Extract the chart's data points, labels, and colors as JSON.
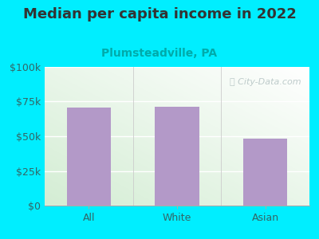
{
  "title": "Median per capita income in 2022",
  "subtitle": "Plumsteadville, PA",
  "categories": [
    "All",
    "White",
    "Asian"
  ],
  "values": [
    70500,
    71500,
    48000
  ],
  "bar_color": "#b399c8",
  "outer_bg": "#00eeff",
  "title_color": "#333333",
  "subtitle_color": "#00aaaa",
  "tick_label_color": "#336666",
  "ylim": [
    0,
    100000
  ],
  "yticks": [
    0,
    25000,
    50000,
    75000,
    100000
  ],
  "ytick_labels": [
    "$0",
    "$25k",
    "$50k",
    "$75k",
    "$100k"
  ],
  "watermark": "ⓘ City-Data.com",
  "title_fontsize": 13,
  "subtitle_fontsize": 10,
  "tick_fontsize": 9,
  "grad_colors": [
    "#d4edda",
    "#f0faf0",
    "#ffffff"
  ],
  "grid_color": "#ddeedc",
  "bottom_line_color": "#aaaaaa"
}
